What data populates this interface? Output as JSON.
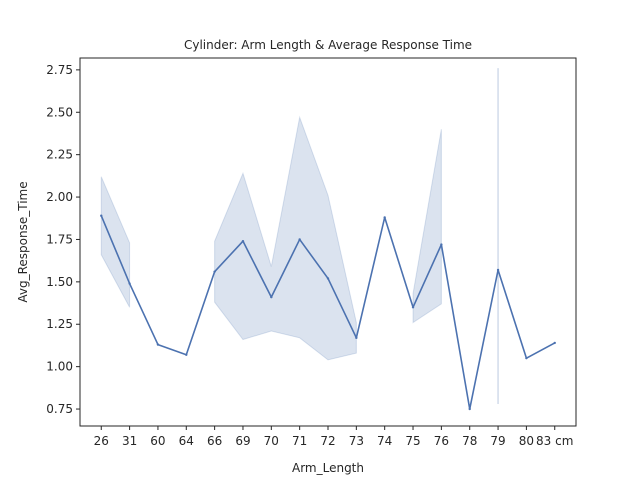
{
  "chart_data": {
    "type": "line",
    "title": "Cylinder: Arm Length & Average Response Time",
    "xlabel": "Arm_Length",
    "ylabel": "Avg_Response_Time",
    "categories": [
      "26",
      "31",
      "60",
      "64",
      "66",
      "69",
      "70",
      "71",
      "72",
      "73",
      "74",
      "75",
      "76",
      "78",
      "79",
      "80",
      "83 cm"
    ],
    "ylim": [
      0.65,
      2.82
    ],
    "yticks": [
      0.75,
      1.0,
      1.25,
      1.5,
      1.75,
      2.0,
      2.25,
      2.5,
      2.75
    ],
    "grid": false,
    "series": [
      {
        "values": [
          1.89,
          1.49,
          1.13,
          1.07,
          1.56,
          1.74,
          1.41,
          1.75,
          1.52,
          1.17,
          1.88,
          1.35,
          1.72,
          0.75,
          1.57,
          1.05,
          1.14
        ],
        "ci_lower": [
          1.66,
          1.35,
          null,
          null,
          1.38,
          1.16,
          1.21,
          1.17,
          1.04,
          1.08,
          null,
          1.26,
          1.37,
          null,
          0.78,
          null,
          null
        ],
        "ci_upper": [
          2.12,
          1.73,
          null,
          null,
          1.74,
          2.14,
          1.59,
          2.47,
          2.01,
          1.26,
          null,
          1.43,
          2.4,
          null,
          2.76,
          null,
          null
        ]
      }
    ],
    "colors": {
      "line": "#4c72b0",
      "band": "#4c72b0"
    }
  }
}
